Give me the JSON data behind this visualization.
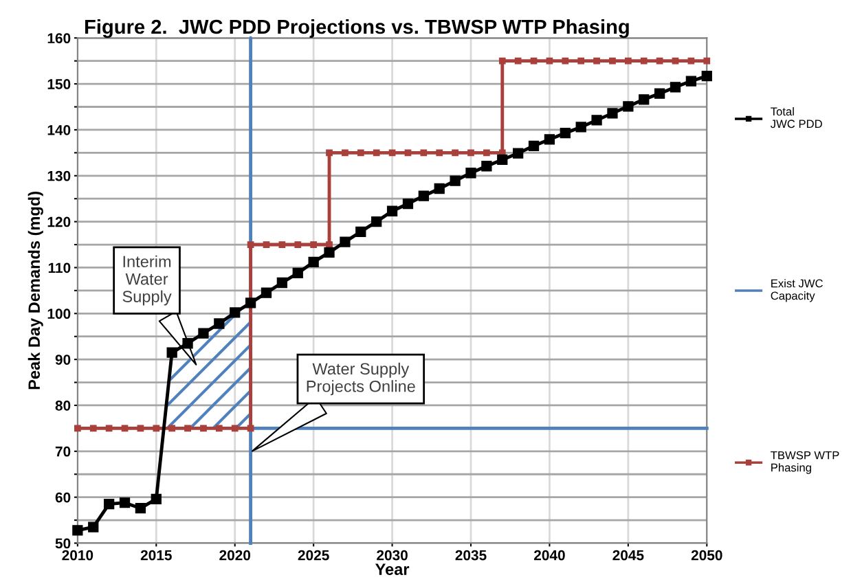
{
  "chart_data": {
    "type": "line",
    "title": "Figure 2.  JWC PDD Projections vs. TBWSP WTP Phasing",
    "xlabel": "Year",
    "ylabel": "Peak Day Demands (mgd)",
    "series": [
      {
        "name": "Total\nJWC PDD",
        "color": "#000000",
        "marker": "square",
        "x": [
          2010,
          2011,
          2012,
          2013,
          2014,
          2015,
          2016,
          2017,
          2018,
          2019,
          2020,
          2021,
          2022,
          2023,
          2024,
          2025,
          2026,
          2027,
          2028,
          2029,
          2030,
          2031,
          2032,
          2033,
          2034,
          2035,
          2036,
          2037,
          2038,
          2039,
          2040,
          2041,
          2042,
          2043,
          2044,
          2045,
          2046,
          2047,
          2048,
          2049,
          2050
        ],
        "values": [
          52.8,
          53.5,
          58.5,
          58.8,
          57.6,
          59.6,
          91.5,
          93.5,
          95.7,
          97.8,
          100.2,
          102.3,
          104.5,
          106.7,
          108.8,
          111.2,
          113.3,
          115.6,
          117.8,
          120.0,
          122.3,
          123.9,
          125.6,
          127.2,
          128.9,
          130.6,
          132.1,
          133.5,
          134.9,
          136.5,
          137.9,
          139.3,
          140.6,
          142.1,
          143.6,
          145.1,
          146.6,
          147.9,
          149.3,
          150.6,
          151.7
        ]
      },
      {
        "name": "Exist JWC\nCapacity",
        "color": "#4f81bd",
        "marker": "none",
        "x": [
          2021,
          2021,
          2021,
          2050
        ],
        "values": [
          50,
          160,
          75,
          75
        ]
      },
      {
        "name": "TBWSP WTP\nPhasing",
        "color": "#a9403c",
        "marker": "square",
        "x": [
          2010,
          2011,
          2012,
          2013,
          2014,
          2015,
          2016,
          2017,
          2018,
          2019,
          2020,
          2021,
          2021,
          2022,
          2023,
          2024,
          2025,
          2026,
          2026,
          2027,
          2028,
          2029,
          2030,
          2031,
          2032,
          2033,
          2034,
          2035,
          2036,
          2037,
          2037,
          2038,
          2039,
          2040,
          2041,
          2042,
          2043,
          2044,
          2045,
          2046,
          2047,
          2048,
          2049,
          2050
        ],
        "values": [
          75,
          75,
          75,
          75,
          75,
          75,
          75,
          75,
          75,
          75,
          75,
          75,
          115,
          115,
          115,
          115,
          115,
          115,
          135,
          135,
          135,
          135,
          135,
          135,
          135,
          135,
          135,
          135,
          135,
          135,
          155,
          155,
          155,
          155,
          155,
          155,
          155,
          155,
          155,
          155,
          155,
          155,
          155,
          155
        ]
      }
    ],
    "annotations": [
      "Interim\nWater\nSupply",
      "Water Supply\nProjects Online"
    ],
    "xlim": [
      2010,
      2050
    ],
    "xticks": [
      2010,
      2015,
      2020,
      2025,
      2030,
      2035,
      2040,
      2045,
      2050
    ],
    "ylim": [
      50,
      160
    ],
    "yticks": [
      50,
      {
        "value": 55,
        "label": null
      },
      60,
      {
        "value": 65,
        "label": null
      },
      70,
      {
        "value": 75,
        "label": null
      },
      80,
      {
        "value": 85,
        "label": null
      },
      90,
      {
        "value": 95,
        "label": null
      },
      100,
      {
        "value": 105,
        "label": null
      },
      110,
      {
        "value": 115,
        "label": null
      },
      120,
      {
        "value": 125,
        "label": null
      },
      130,
      {
        "value": 135,
        "label": null
      },
      140,
      {
        "value": 145,
        "label": null
      },
      150,
      {
        "value": 155,
        "label": null
      },
      160
    ],
    "grid": true,
    "legend": "right"
  }
}
